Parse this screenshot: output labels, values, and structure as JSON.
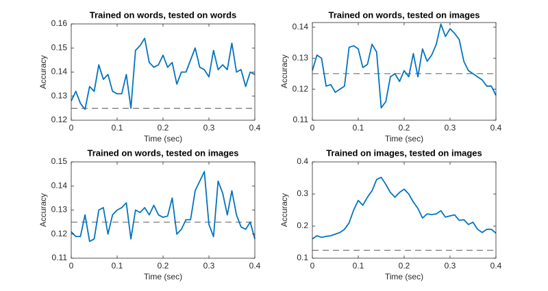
{
  "chart_data": [
    {
      "type": "line",
      "title": "Trained on words, tested on words",
      "x_label": "Time (sec)",
      "y_label": "Accuracy",
      "x": [
        0,
        0.01,
        0.02,
        0.03,
        0.04,
        0.05,
        0.06,
        0.07,
        0.08,
        0.09,
        0.1,
        0.11,
        0.12,
        0.13,
        0.14,
        0.15,
        0.16,
        0.17,
        0.18,
        0.19,
        0.2,
        0.21,
        0.22,
        0.23,
        0.24,
        0.25,
        0.26,
        0.27,
        0.28,
        0.29,
        0.3,
        0.31,
        0.32,
        0.33,
        0.34,
        0.35,
        0.36,
        0.37,
        0.38,
        0.39,
        0.4
      ],
      "series": [
        {
          "color": "#0072bd",
          "values": [
            0.128,
            0.132,
            0.127,
            0.1245,
            0.134,
            0.132,
            0.143,
            0.137,
            0.139,
            0.132,
            0.131,
            0.131,
            0.139,
            0.125,
            0.149,
            0.151,
            0.154,
            0.144,
            0.142,
            0.143,
            0.147,
            0.142,
            0.144,
            0.135,
            0.14,
            0.14,
            0.145,
            0.15,
            0.142,
            0.141,
            0.138,
            0.149,
            0.141,
            0.143,
            0.141,
            0.152,
            0.14,
            0.141,
            0.134,
            0.14,
            0.139
          ]
        }
      ],
      "hline": 0.125,
      "xlim": [
        0,
        0.4
      ],
      "ylim": [
        0.12,
        0.16
      ],
      "xticks": [
        0,
        0.1,
        0.2,
        0.3,
        0.4
      ],
      "yticks": [
        0.12,
        0.13,
        0.14,
        0.15,
        0.16
      ]
    },
    {
      "type": "line",
      "title": "Trained on words, tested on images",
      "x_label": "Time (sec)",
      "y_label": "Accuracy",
      "x": [
        0,
        0.01,
        0.02,
        0.03,
        0.04,
        0.05,
        0.06,
        0.07,
        0.08,
        0.09,
        0.1,
        0.11,
        0.12,
        0.13,
        0.14,
        0.15,
        0.16,
        0.17,
        0.18,
        0.19,
        0.2,
        0.21,
        0.22,
        0.23,
        0.24,
        0.25,
        0.26,
        0.27,
        0.28,
        0.29,
        0.3,
        0.31,
        0.32,
        0.33,
        0.34,
        0.35,
        0.36,
        0.37,
        0.38,
        0.39,
        0.4
      ],
      "series": [
        {
          "color": "#0072bd",
          "values": [
            0.126,
            0.131,
            0.13,
            0.121,
            0.1215,
            0.119,
            0.12,
            0.121,
            0.1335,
            0.134,
            0.133,
            0.127,
            0.128,
            0.1345,
            0.132,
            0.114,
            0.116,
            0.124,
            0.125,
            0.1225,
            0.126,
            0.124,
            0.1315,
            0.124,
            0.133,
            0.129,
            0.131,
            0.1345,
            0.141,
            0.137,
            0.1395,
            0.138,
            0.136,
            0.129,
            0.126,
            0.125,
            0.124,
            0.123,
            0.121,
            0.121,
            0.118
          ]
        }
      ],
      "hline": 0.125,
      "xlim": [
        0,
        0.4
      ],
      "ylim": [
        0.11,
        0.1415
      ],
      "xticks": [
        0,
        0.1,
        0.2,
        0.3,
        0.4
      ],
      "yticks": [
        0.11,
        0.12,
        0.13,
        0.14
      ]
    },
    {
      "type": "line",
      "title": "Trained on words, tested on images",
      "x_label": "Time (sec)",
      "y_label": "Accuracy",
      "x": [
        0,
        0.01,
        0.02,
        0.03,
        0.04,
        0.05,
        0.06,
        0.07,
        0.08,
        0.09,
        0.1,
        0.11,
        0.12,
        0.13,
        0.14,
        0.15,
        0.16,
        0.17,
        0.18,
        0.19,
        0.2,
        0.21,
        0.22,
        0.23,
        0.24,
        0.25,
        0.26,
        0.27,
        0.28,
        0.29,
        0.3,
        0.31,
        0.32,
        0.33,
        0.34,
        0.35,
        0.36,
        0.37,
        0.38,
        0.39,
        0.4
      ],
      "series": [
        {
          "color": "#0072bd",
          "values": [
            0.121,
            0.119,
            0.119,
            0.128,
            0.117,
            0.118,
            0.13,
            0.131,
            0.12,
            0.128,
            0.13,
            0.131,
            0.133,
            0.118,
            0.13,
            0.129,
            0.131,
            0.128,
            0.132,
            0.128,
            0.127,
            0.1275,
            0.135,
            0.12,
            0.122,
            0.126,
            0.126,
            0.138,
            0.142,
            0.146,
            0.124,
            0.119,
            0.142,
            0.137,
            0.128,
            0.138,
            0.128,
            0.123,
            0.122,
            0.125,
            0.118
          ]
        }
      ],
      "hline": 0.125,
      "xlim": [
        0,
        0.4
      ],
      "ylim": [
        0.11,
        0.15
      ],
      "xticks": [
        0,
        0.1,
        0.2,
        0.3,
        0.4
      ],
      "yticks": [
        0.11,
        0.12,
        0.13,
        0.14,
        0.15
      ]
    },
    {
      "type": "line",
      "title": "Trained on images, tested on images",
      "x_label": "Time (sec)",
      "y_label": "Accuracy",
      "x": [
        0,
        0.01,
        0.02,
        0.03,
        0.04,
        0.05,
        0.06,
        0.07,
        0.08,
        0.09,
        0.1,
        0.11,
        0.12,
        0.13,
        0.14,
        0.15,
        0.16,
        0.17,
        0.18,
        0.19,
        0.2,
        0.21,
        0.22,
        0.23,
        0.24,
        0.25,
        0.26,
        0.27,
        0.28,
        0.29,
        0.3,
        0.31,
        0.32,
        0.33,
        0.34,
        0.35,
        0.36,
        0.37,
        0.38,
        0.39,
        0.4
      ],
      "series": [
        {
          "color": "#0072bd",
          "values": [
            0.16,
            0.17,
            0.165,
            0.168,
            0.17,
            0.175,
            0.18,
            0.19,
            0.21,
            0.25,
            0.28,
            0.265,
            0.29,
            0.31,
            0.345,
            0.352,
            0.33,
            0.305,
            0.29,
            0.305,
            0.315,
            0.3,
            0.275,
            0.255,
            0.225,
            0.238,
            0.236,
            0.238,
            0.248,
            0.228,
            0.232,
            0.235,
            0.218,
            0.22,
            0.205,
            0.212,
            0.19,
            0.18,
            0.19,
            0.19,
            0.178
          ]
        }
      ],
      "hline": 0.125,
      "xlim": [
        0,
        0.4
      ],
      "ylim": [
        0.1,
        0.4
      ],
      "xticks": [
        0,
        0.1,
        0.2,
        0.3,
        0.4
      ],
      "yticks": [
        0.1,
        0.2,
        0.3,
        0.4
      ]
    }
  ]
}
